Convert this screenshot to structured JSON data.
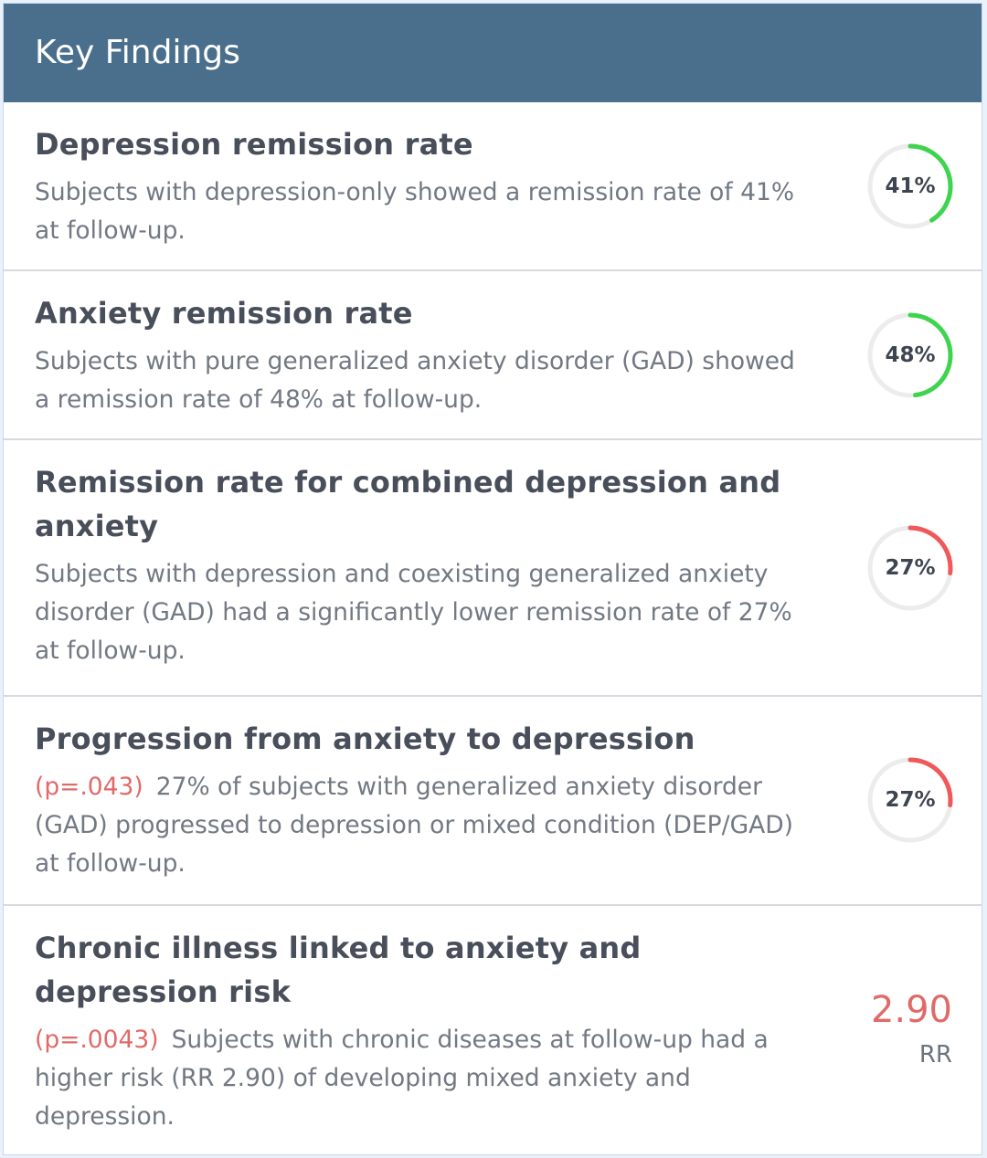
{
  "header": {
    "title": "Key Findings"
  },
  "colors": {
    "header_bg": "#4a6f8d",
    "positive": "#3fd44f",
    "negative": "#f0585a",
    "track": "#ececec",
    "pvalue": "#e06a68"
  },
  "findings": [
    {
      "title": "Depression remission rate",
      "pvalue": "",
      "description": "Subjects with depression-only showed a remission rate of 41% at follow-up.",
      "metric": {
        "type": "gauge",
        "label": "41%",
        "value": 41,
        "color": "#3fd44f"
      }
    },
    {
      "title": "Anxiety remission rate",
      "pvalue": "",
      "description": "Subjects with pure generalized anxiety disorder (GAD) showed a remission rate of 48% at follow-up.",
      "metric": {
        "type": "gauge",
        "label": "48%",
        "value": 48,
        "color": "#3fd44f"
      }
    },
    {
      "title": "Remission rate for combined depression and anxiety",
      "pvalue": "",
      "description": "Subjects with depression and coexisting generalized anxiety disorder (GAD) had a significantly lower remission rate of 27% at follow-up.",
      "metric": {
        "type": "gauge",
        "label": "27%",
        "value": 27,
        "color": "#f0585a"
      }
    },
    {
      "title": "Progression from anxiety to depression",
      "pvalue": "(p=.043)",
      "description": "27% of subjects with generalized anxiety disorder (GAD) progressed to depression or mixed condition (DEP/GAD) at follow-up.",
      "metric": {
        "type": "gauge",
        "label": "27%",
        "value": 27,
        "color": "#f0585a"
      }
    },
    {
      "title": "Chronic illness linked to anxiety and depression risk",
      "pvalue": "(p=.0043)",
      "description": "Subjects with chronic diseases at follow-up had a higher risk (RR 2.90) of developing mixed anxiety and depression.",
      "metric": {
        "type": "rr",
        "value": "2.90",
        "label": "RR"
      }
    }
  ]
}
